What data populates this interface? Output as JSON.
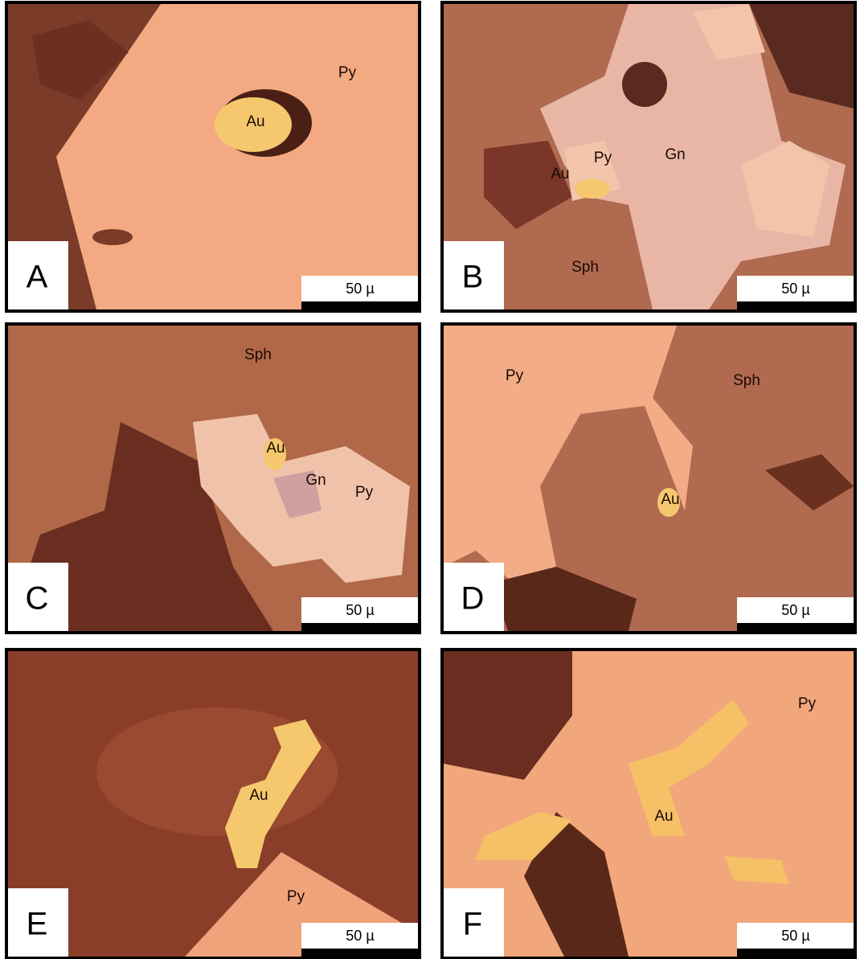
{
  "panels": [
    {
      "letter": "A",
      "scale": "50 µ",
      "labels": [
        "Au",
        "Py"
      ]
    },
    {
      "letter": "B",
      "scale": "50 µ",
      "labels": [
        "Py",
        "Gn",
        "Au",
        "Sph"
      ]
    },
    {
      "letter": "C",
      "scale": "50 µ",
      "labels": [
        "Sph",
        "Au",
        "Gn",
        "Py"
      ]
    },
    {
      "letter": "D",
      "scale": "50 µ",
      "labels": [
        "Py",
        "Sph",
        "Au"
      ]
    },
    {
      "letter": "E",
      "scale": "50 µ",
      "labels": [
        "Au",
        "Py"
      ]
    },
    {
      "letter": "F",
      "scale": "50 µ",
      "labels": [
        "Py",
        "Au"
      ]
    }
  ]
}
